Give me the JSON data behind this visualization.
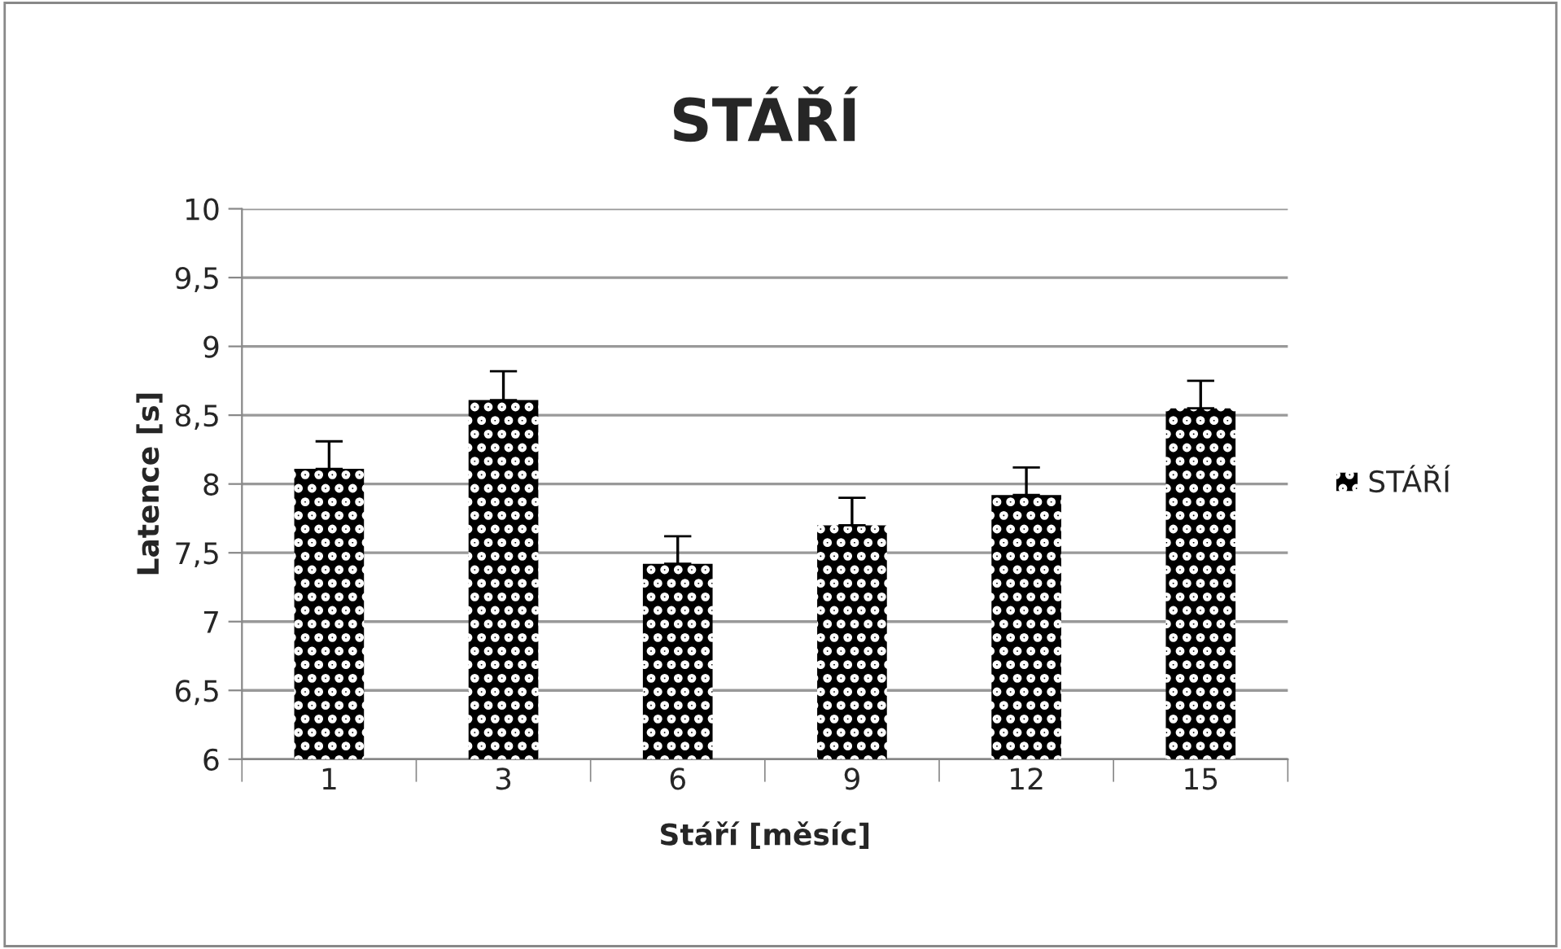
{
  "chart_data": {
    "type": "bar",
    "title": "STÁŘÍ",
    "xlabel": "Stáří [měsíc]",
    "ylabel": "Latence [s]",
    "categories": [
      "1",
      "3",
      "6",
      "9",
      "12",
      "15"
    ],
    "series": [
      {
        "name": "STÁŘÍ",
        "color": "#000000",
        "values": [
          8.11,
          8.61,
          7.42,
          7.7,
          7.92,
          8.55
        ],
        "errors": [
          [
            8.11,
            8.31
          ],
          [
            8.61,
            8.82
          ],
          [
            7.42,
            7.62
          ],
          [
            7.7,
            7.9
          ],
          [
            7.92,
            8.12
          ],
          [
            8.55,
            8.75
          ]
        ]
      }
    ],
    "ylim": [
      6,
      10
    ],
    "yticks": [
      {
        "value": 6,
        "label": "6"
      },
      {
        "value": 6.5,
        "label": "6,5"
      },
      {
        "value": 7,
        "label": "7"
      },
      {
        "value": 7.5,
        "label": "7,5"
      },
      {
        "value": 8,
        "label": "8"
      },
      {
        "value": 8.5,
        "label": "8,5"
      },
      {
        "value": 9,
        "label": "9"
      },
      {
        "value": 9.5,
        "label": "9,5"
      },
      {
        "value": 10,
        "label": "10"
      }
    ],
    "grid": "y",
    "legend": "right"
  }
}
